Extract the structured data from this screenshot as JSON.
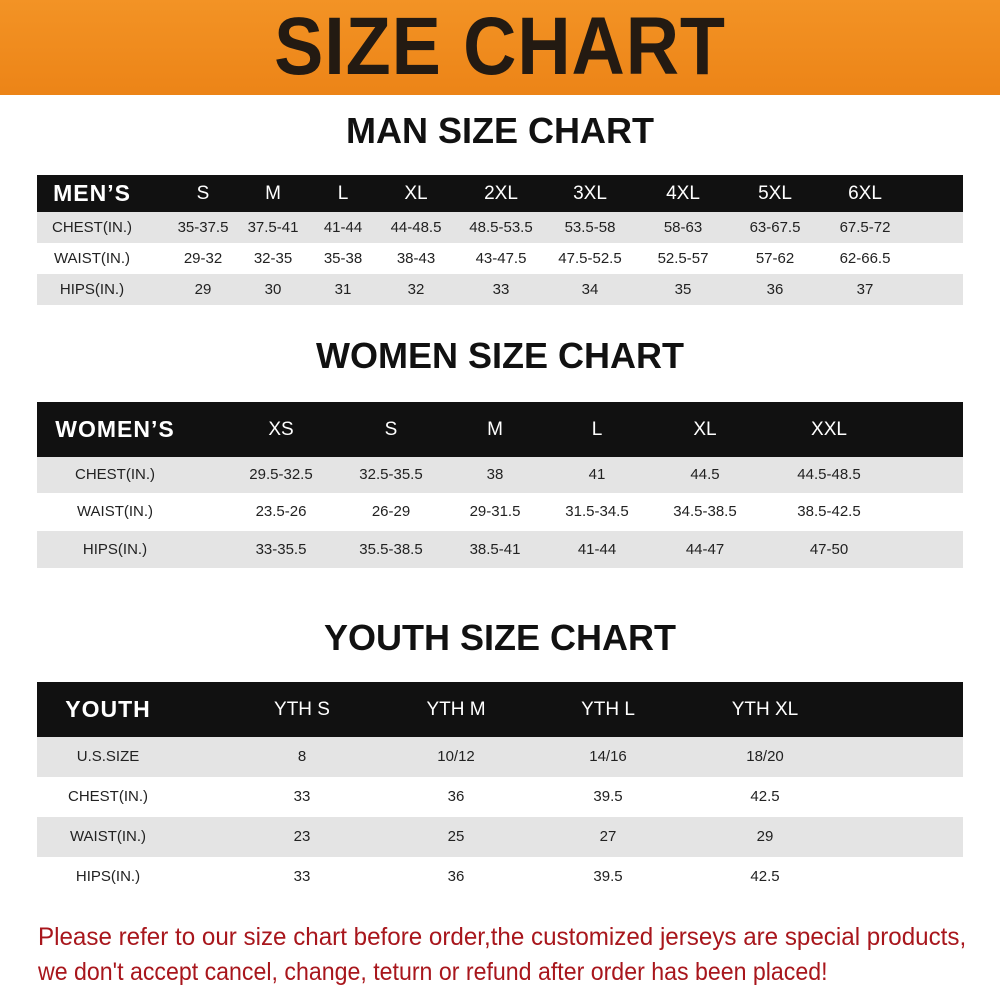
{
  "banner": {
    "title": "SIZE CHART",
    "color": "#ef8a1f"
  },
  "men": {
    "title": "MAN SIZE CHART",
    "header": [
      "MEN’S",
      "S",
      "M",
      "L",
      "XL",
      "2XL",
      "3XL",
      "4XL",
      "5XL",
      "6XL"
    ],
    "rows": [
      [
        "CHEST(IN.)",
        "35-37.5",
        "37.5-41",
        "41-44",
        "44-48.5",
        "48.5-53.5",
        "53.5-58",
        "58-63",
        "63-67.5",
        "67.5-72"
      ],
      [
        "WAIST(IN.)",
        "29-32",
        "32-35",
        "35-38",
        "38-43",
        "43-47.5",
        "47.5-52.5",
        "52.5-57",
        "57-62",
        "62-66.5"
      ],
      [
        "HIPS(IN.)",
        "29",
        "30",
        "31",
        "32",
        "33",
        "34",
        "35",
        "36",
        "37"
      ]
    ]
  },
  "women": {
    "title": "WOMEN SIZE CHART",
    "header": [
      "WOMEN’S",
      "XS",
      "S",
      "M",
      "L",
      "XL",
      "XXL"
    ],
    "rows": [
      [
        "CHEST(IN.)",
        "29.5-32.5",
        "32.5-35.5",
        "38",
        "41",
        "44.5",
        "44.5-48.5"
      ],
      [
        "WAIST(IN.)",
        "23.5-26",
        "26-29",
        "29-31.5",
        "31.5-34.5",
        "34.5-38.5",
        "38.5-42.5"
      ],
      [
        "HIPS(IN.)",
        "33-35.5",
        "35.5-38.5",
        "38.5-41",
        "41-44",
        "44-47",
        "47-50"
      ]
    ]
  },
  "youth": {
    "title": "YOUTH SIZE CHART",
    "header": [
      "YOUTH",
      "YTH S",
      "YTH M",
      "YTH L",
      "YTH XL"
    ],
    "rows": [
      [
        "U.S.SIZE",
        "8",
        "10/12",
        "14/16",
        "18/20"
      ],
      [
        "CHEST(IN.)",
        "33",
        "36",
        "39.5",
        "42.5"
      ],
      [
        "WAIST(IN.)",
        "23",
        "25",
        "27",
        "29"
      ],
      [
        "HIPS(IN.)",
        "33",
        "36",
        "39.5",
        "42.5"
      ]
    ]
  },
  "notice": {
    "line1": "Please refer to our size chart before order,the customized jerseys are special products,",
    "line2": "we don't accept cancel, change, teturn or refund after order has been placed!",
    "color": "#a8161c"
  }
}
